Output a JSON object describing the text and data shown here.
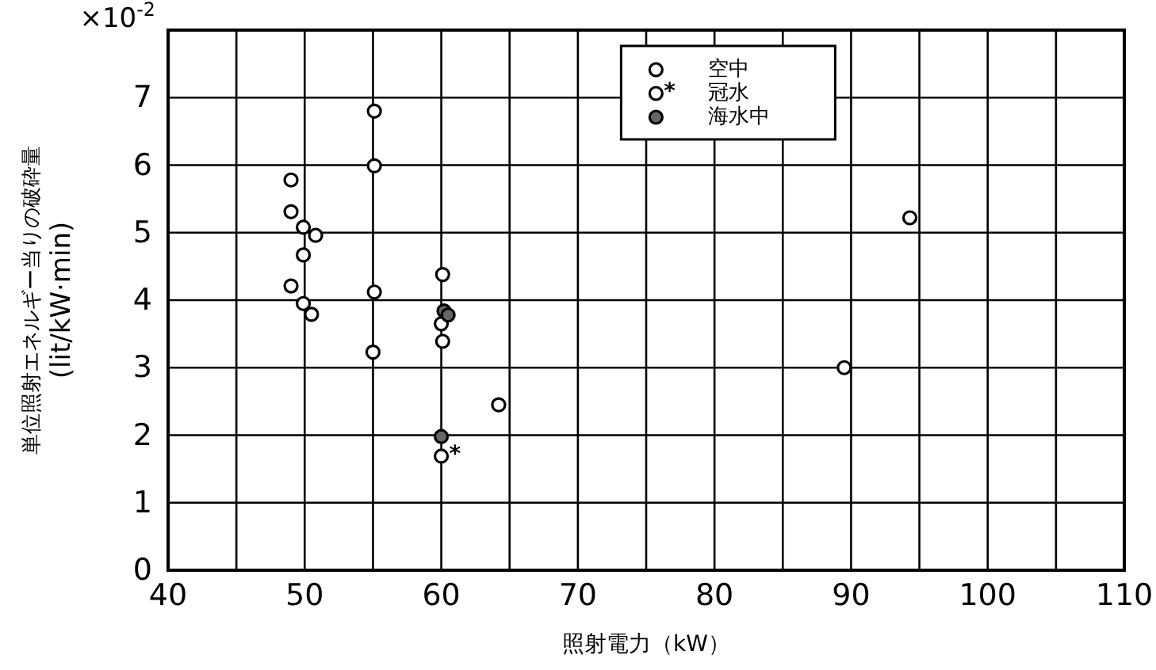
{
  "chart_data": {
    "type": "scatter",
    "xlabel": "照射電力（kW）",
    "ylabel": "単位照射エネルギー当りの破砕量 (lit/kW·min)",
    "annotations": [
      "×10$^{-2}$",
      {
        "text": "*",
        "x": 60,
        "y": 1.69
      }
    ],
    "xlim": [
      40,
      110
    ],
    "ylim": [
      0,
      8
    ],
    "xticks": [
      40,
      {
        "value": 45,
        "label": null
      },
      50,
      {
        "value": 55,
        "label": null
      },
      60,
      {
        "value": 65,
        "label": null
      },
      70,
      {
        "value": 75,
        "label": null
      },
      80,
      {
        "value": 85,
        "label": null
      },
      90,
      {
        "value": 95,
        "label": null
      },
      100,
      {
        "value": 105,
        "label": null
      },
      110
    ],
    "yticks": [
      0,
      1,
      2,
      3,
      4,
      5,
      6,
      7,
      {
        "value": 8,
        "label": null
      }
    ],
    "grid": true,
    "legend": "top",
    "marker": "circle",
    "series": [
      {
        "name": "空中",
        "color": "#ffffff",
        "marker": "circle",
        "x": [
          49,
          49,
          49.9,
          50.8,
          49.9,
          49,
          49.9,
          50.5,
          55.1,
          55.1,
          55.1,
          55,
          60.1,
          60.1,
          60,
          64.2,
          89.5,
          94.3
        ],
        "values": [
          5.78,
          5.31,
          5.08,
          4.96,
          4.67,
          4.21,
          3.95,
          3.79,
          6.8,
          5.99,
          4.12,
          3.23,
          4.38,
          3.39,
          3.65,
          2.45,
          3.0,
          5.22
        ]
      },
      {
        "name": "冠水",
        "color": "#ffffff",
        "x": [
          60
        ],
        "values": [
          1.69
        ]
      },
      {
        "name": "海水中",
        "color": "#666666",
        "marker": "circle",
        "x": [
          60.2,
          60.5,
          60
        ],
        "values": [
          3.84,
          3.78,
          1.98
        ]
      }
    ]
  }
}
